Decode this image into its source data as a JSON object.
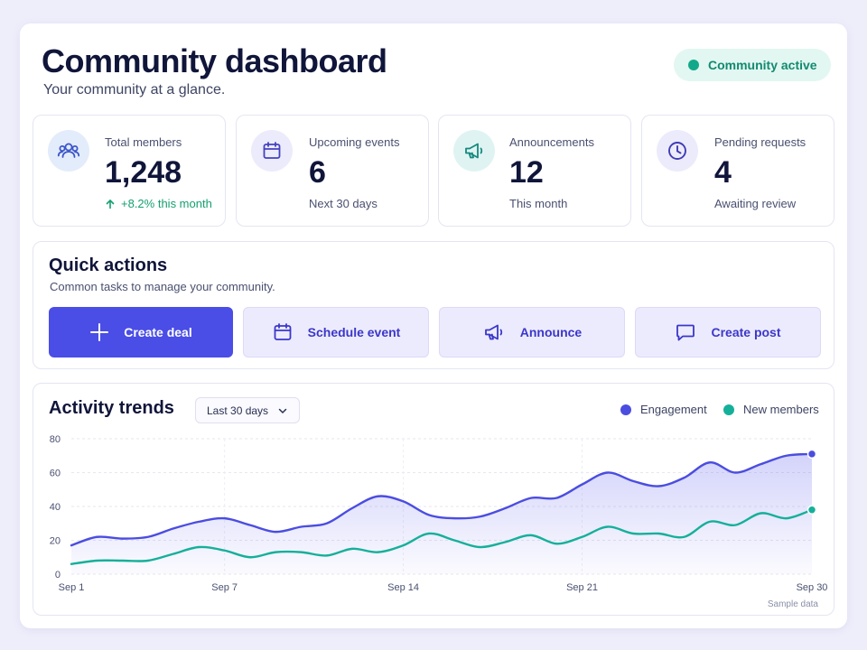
{
  "header": {
    "title": "Community dashboard",
    "subtitle": "Your community at a glance.",
    "status": "Community active"
  },
  "stats": [
    {
      "label": "Total members",
      "value": "1,248",
      "sub": "+8.2% this month",
      "icon": "members-icon"
    },
    {
      "label": "Upcoming events",
      "value": "6",
      "sub": "Next 30 days",
      "icon": "calendar-icon"
    },
    {
      "label": "Announcements",
      "value": "12",
      "sub": "This month",
      "icon": "megaphone-icon"
    },
    {
      "label": "Pending requests",
      "value": "4",
      "sub": "Awaiting review",
      "icon": "clock-icon"
    }
  ],
  "quick_actions": {
    "title": "Quick actions",
    "subtitle": "Common tasks to manage your community.",
    "buttons": [
      {
        "label": "Create deal",
        "icon": "plus-icon"
      },
      {
        "label": "Schedule event",
        "icon": "calendar-icon"
      },
      {
        "label": "Announce",
        "icon": "megaphone-icon"
      },
      {
        "label": "Create post",
        "icon": "chat-bubble-icon"
      }
    ]
  },
  "activity": {
    "title": "Activity trends",
    "range": "Last 30 days",
    "note": "Sample data"
  },
  "colors": {
    "accent": "#4a4de6",
    "engagement": "#4b4de0",
    "new_members": "#15b09a",
    "positive": "#14a06e"
  },
  "chart_data": {
    "type": "line",
    "x": [
      "Sep 1",
      "Sep 2",
      "Sep 3",
      "Sep 4",
      "Sep 5",
      "Sep 6",
      "Sep 7",
      "Sep 8",
      "Sep 9",
      "Sep 10",
      "Sep 11",
      "Sep 12",
      "Sep 13",
      "Sep 14",
      "Sep 15",
      "Sep 16",
      "Sep 17",
      "Sep 18",
      "Sep 19",
      "Sep 20",
      "Sep 21",
      "Sep 22",
      "Sep 23",
      "Sep 24",
      "Sep 25",
      "Sep 26",
      "Sep 27",
      "Sep 28",
      "Sep 29",
      "Sep 30"
    ],
    "x_ticks": [
      "Sep 1",
      "Sep 7",
      "Sep 14",
      "Sep 21",
      "Sep 30"
    ],
    "series": [
      {
        "name": "Engagement",
        "values": [
          17,
          22,
          21,
          22,
          27,
          31,
          33,
          29,
          25,
          28,
          30,
          39,
          46,
          43,
          35,
          33,
          34,
          39,
          45,
          45,
          53,
          60,
          55,
          52,
          57,
          66,
          60,
          65,
          70,
          71
        ]
      },
      {
        "name": "New members",
        "values": [
          6,
          8,
          8,
          8,
          12,
          16,
          14,
          10,
          13,
          13,
          11,
          15,
          13,
          17,
          24,
          20,
          16,
          19,
          23,
          18,
          22,
          28,
          24,
          24,
          22,
          31,
          29,
          36,
          33,
          38
        ]
      }
    ],
    "ylim": [
      0,
      80
    ],
    "yticks": [
      0,
      20,
      40,
      60,
      80
    ],
    "grid": true,
    "legend": "top-right",
    "area_fill": "Engagement"
  }
}
